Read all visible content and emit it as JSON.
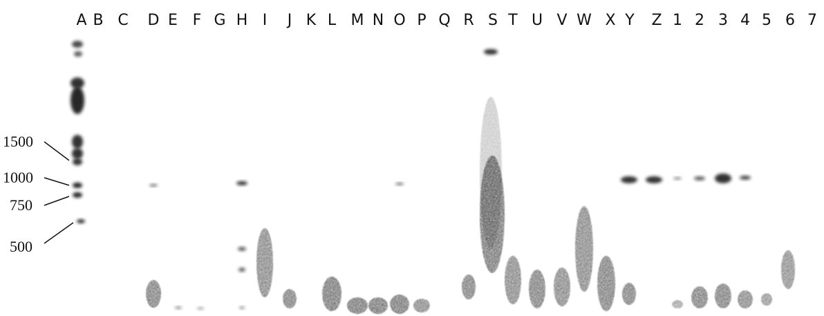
{
  "lanes": [
    "A",
    "B",
    "C",
    "D",
    "E",
    "F",
    "G",
    "H",
    "I",
    "J",
    "K",
    "L",
    "M",
    "N",
    "O",
    "P",
    "Q",
    "R",
    "S",
    "T",
    "U",
    "V",
    "W",
    "X",
    "Y",
    "Z",
    "1",
    "2",
    "3",
    "4",
    "5",
    "6",
    "7"
  ],
  "markers": [
    "1500",
    "1000",
    "750",
    "500"
  ]
}
